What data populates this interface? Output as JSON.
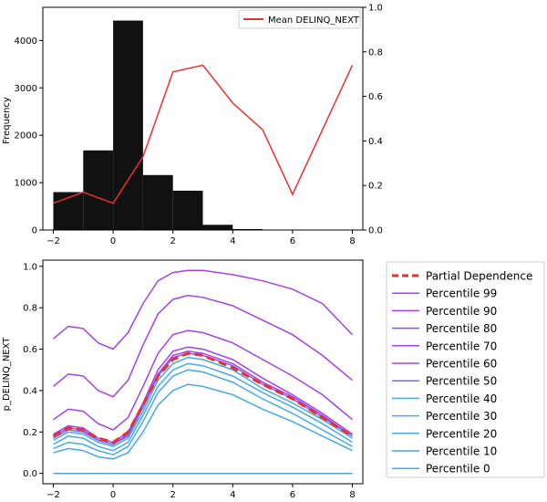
{
  "chart_data": [
    {
      "type": "bar",
      "subtype": "histogram-with-mean-line",
      "histogram": {
        "bins": [
          [
            -2,
            -1
          ],
          [
            -1,
            0
          ],
          [
            0,
            1
          ],
          [
            1,
            2
          ],
          [
            2,
            3
          ],
          [
            3,
            4
          ],
          [
            4,
            5
          ],
          [
            5,
            6
          ],
          [
            6,
            7
          ],
          [
            7,
            8
          ]
        ],
        "values": [
          800,
          1680,
          4420,
          1160,
          830,
          110,
          20,
          8,
          4,
          3
        ],
        "color": "#111111"
      },
      "ylabel": "Frequency",
      "ylim": [
        0,
        4700
      ],
      "yticks": [
        0,
        1000,
        2000,
        3000,
        4000
      ],
      "xticks": [
        -2,
        0,
        2,
        4,
        6,
        8
      ],
      "xlim": [
        -2.35,
        8.35
      ],
      "y2lim": [
        0,
        1.0
      ],
      "y2ticks": [
        "0.0",
        "0.2",
        "0.4",
        "0.6",
        "0.8",
        "1.0"
      ],
      "series": [
        {
          "name": "Mean DELINQ_NEXT",
          "color": "#e8312f",
          "x": [
            -2,
            -1,
            0,
            1,
            2,
            3,
            4,
            5,
            6,
            8
          ],
          "y": [
            0.12,
            0.17,
            0.12,
            0.33,
            0.71,
            0.74,
            0.57,
            0.45,
            0.16,
            0.74
          ]
        }
      ],
      "legend": "top-right"
    },
    {
      "type": "line",
      "ylabel": "p_DELINQ_NEXT",
      "xlim": [
        -2.35,
        8.35
      ],
      "ylim": [
        -0.05,
        1.03
      ],
      "xticks": [
        -2,
        0,
        2,
        4,
        6,
        8
      ],
      "yticks": [
        "0.0",
        "0.2",
        "0.4",
        "0.6",
        "0.8",
        "1.0"
      ],
      "x": [
        -2,
        -1.5,
        -1,
        -0.5,
        0,
        0.5,
        1,
        1.5,
        2,
        2.5,
        3,
        4,
        5,
        6,
        7,
        8
      ],
      "legend": "outside-right",
      "series": [
        {
          "name": "Partial Dependence",
          "color": "#e8312f",
          "style": "dashed",
          "values": [
            0.18,
            0.22,
            0.21,
            0.17,
            0.15,
            0.2,
            0.33,
            0.47,
            0.55,
            0.58,
            0.57,
            0.51,
            0.43,
            0.36,
            0.27,
            0.18
          ]
        },
        {
          "name": "Percentile 99",
          "color": "#a541f0",
          "style": "solid",
          "values": [
            0.65,
            0.71,
            0.7,
            0.63,
            0.6,
            0.68,
            0.82,
            0.93,
            0.97,
            0.98,
            0.98,
            0.96,
            0.93,
            0.89,
            0.82,
            0.67
          ]
        },
        {
          "name": "Percentile 90",
          "color": "#a541f0",
          "style": "solid",
          "values": [
            0.42,
            0.48,
            0.47,
            0.4,
            0.37,
            0.45,
            0.62,
            0.77,
            0.84,
            0.86,
            0.85,
            0.81,
            0.74,
            0.67,
            0.57,
            0.45
          ]
        },
        {
          "name": "Percentile 80",
          "color": "#a541f0",
          "style": "solid",
          "values": [
            0.26,
            0.31,
            0.3,
            0.24,
            0.21,
            0.27,
            0.42,
            0.58,
            0.67,
            0.69,
            0.68,
            0.63,
            0.55,
            0.47,
            0.38,
            0.26
          ]
        },
        {
          "name": "Percentile 70",
          "color": "#a541f0",
          "style": "solid",
          "values": [
            0.19,
            0.23,
            0.22,
            0.17,
            0.15,
            0.2,
            0.34,
            0.5,
            0.59,
            0.61,
            0.6,
            0.55,
            0.46,
            0.38,
            0.29,
            0.19
          ]
        },
        {
          "name": "Percentile 60",
          "color": "#a541f0",
          "style": "solid",
          "values": [
            0.18,
            0.22,
            0.21,
            0.16,
            0.14,
            0.19,
            0.33,
            0.48,
            0.57,
            0.59,
            0.58,
            0.53,
            0.44,
            0.37,
            0.28,
            0.18
          ]
        },
        {
          "name": "Percentile 50",
          "color": "#7f64e6",
          "style": "solid",
          "values": [
            0.17,
            0.21,
            0.2,
            0.16,
            0.14,
            0.18,
            0.32,
            0.47,
            0.56,
            0.58,
            0.57,
            0.52,
            0.43,
            0.36,
            0.27,
            0.18
          ]
        },
        {
          "name": "Percentile 40",
          "color": "#45a9ec",
          "style": "solid",
          "values": [
            0.16,
            0.2,
            0.19,
            0.15,
            0.13,
            0.17,
            0.3,
            0.45,
            0.53,
            0.56,
            0.55,
            0.5,
            0.41,
            0.34,
            0.26,
            0.17
          ]
        },
        {
          "name": "Percentile 30",
          "color": "#45a9ec",
          "style": "solid",
          "values": [
            0.14,
            0.18,
            0.17,
            0.13,
            0.11,
            0.15,
            0.28,
            0.42,
            0.5,
            0.53,
            0.52,
            0.47,
            0.39,
            0.32,
            0.24,
            0.15
          ]
        },
        {
          "name": "Percentile 20",
          "color": "#45a9ec",
          "style": "solid",
          "values": [
            0.12,
            0.15,
            0.14,
            0.11,
            0.09,
            0.13,
            0.25,
            0.39,
            0.47,
            0.5,
            0.49,
            0.44,
            0.36,
            0.29,
            0.21,
            0.13
          ]
        },
        {
          "name": "Percentile 10",
          "color": "#45a9ec",
          "style": "solid",
          "values": [
            0.1,
            0.12,
            0.11,
            0.08,
            0.07,
            0.1,
            0.2,
            0.33,
            0.4,
            0.43,
            0.42,
            0.38,
            0.31,
            0.25,
            0.18,
            0.11
          ]
        },
        {
          "name": "Percentile 0",
          "color": "#45a9ec",
          "style": "solid",
          "values": [
            0,
            0,
            0,
            0,
            0,
            0,
            0,
            0,
            0,
            0,
            0,
            0,
            0,
            0,
            0,
            0
          ]
        }
      ]
    }
  ]
}
